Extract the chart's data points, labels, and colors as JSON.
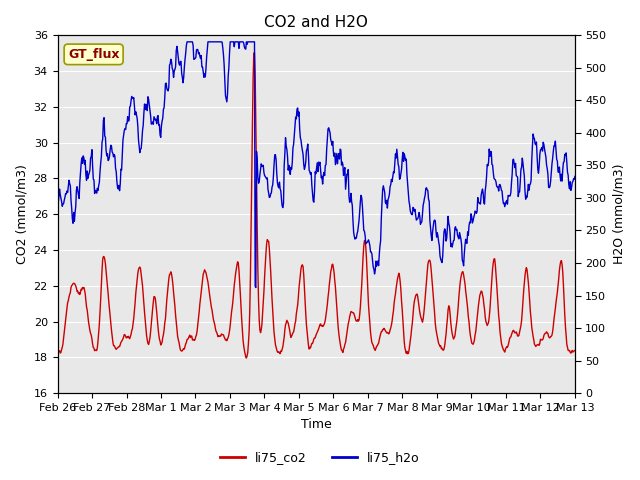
{
  "title": "CO2 and H2O",
  "xlabel": "Time",
  "ylabel_left": "CO2 (mmol/m3)",
  "ylabel_right": "H2O (mmol/m3)",
  "ylim_left": [
    16,
    36
  ],
  "ylim_right": [
    0,
    550
  ],
  "yticks_left": [
    16,
    18,
    20,
    22,
    24,
    26,
    28,
    30,
    32,
    34,
    36
  ],
  "yticks_right": [
    0,
    50,
    100,
    150,
    200,
    250,
    300,
    350,
    400,
    450,
    500,
    550
  ],
  "xtick_labels": [
    "Feb 26",
    "Feb 27",
    "Feb 28",
    "Mar 1",
    "Mar 2",
    "Mar 3",
    "Mar 4",
    "Mar 5",
    "Mar 6",
    "Mar 7",
    "Mar 8",
    "Mar 9",
    "Mar 10",
    "Mar 11",
    "Mar 12",
    "Mar 13"
  ],
  "color_co2": "#cc0000",
  "color_h2o": "#0000cc",
  "label_co2": "li75_co2",
  "label_h2o": "li75_h2o",
  "annotation_text": "GT_flux",
  "annotation_bbox_facecolor": "#ffffcc",
  "annotation_bbox_edgecolor": "#999900",
  "background_color": "#e8e8e8",
  "title_fontsize": 11,
  "axis_label_fontsize": 9,
  "tick_label_fontsize": 8,
  "legend_fontsize": 9,
  "linewidth_co2": 1.0,
  "linewidth_h2o": 1.0
}
